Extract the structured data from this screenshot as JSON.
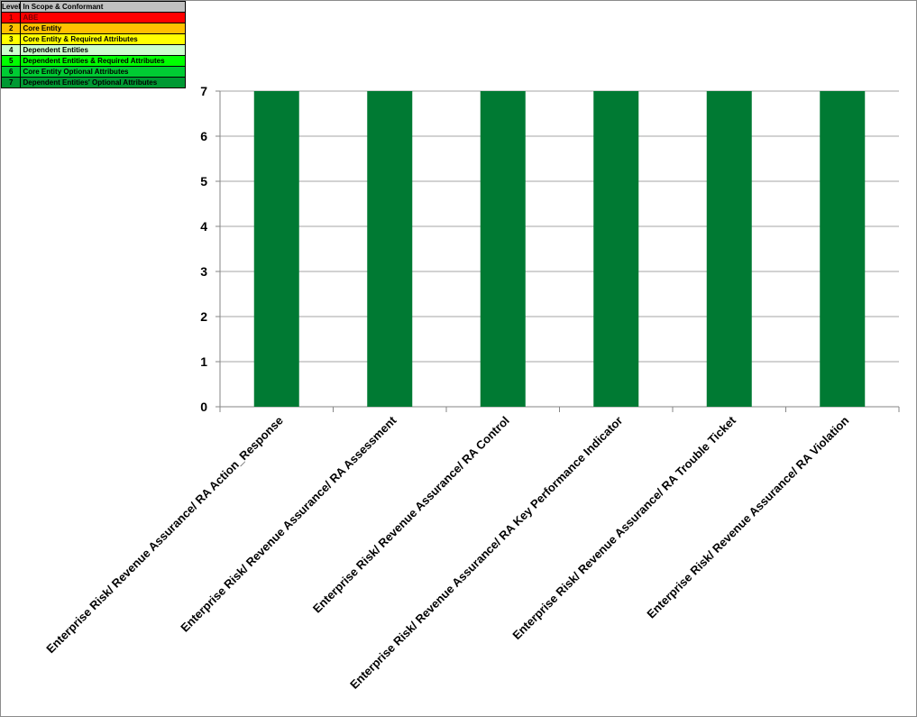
{
  "legend": {
    "header_level": "Level",
    "header_desc": "In Scope & Conformant",
    "rows": [
      {
        "level": "1",
        "label": "ABE",
        "color": "#ff0000"
      },
      {
        "level": "2",
        "label": "Core Entity",
        "color": "#ffc000"
      },
      {
        "level": "3",
        "label": "Core Entity & Required Attributes",
        "color": "#ffff00"
      },
      {
        "level": "4",
        "label": "Dependent Entities",
        "color": "#ccffcc"
      },
      {
        "level": "5",
        "label": "Dependent Entities & Required Attributes",
        "color": "#00ff00"
      },
      {
        "level": "6",
        "label": "Core Entity Optional Attributes",
        "color": "#00cc33"
      },
      {
        "level": "7",
        "label": "Dependent Entities' Optional Attributes",
        "color": "#009933"
      }
    ]
  },
  "chart_data": {
    "type": "bar",
    "categories": [
      "Enterprise Risk/ Revenue Assurance/ RA Action_Response",
      "Enterprise Risk/ Revenue Assurance/ RA Assessment",
      "Enterprise Risk/ Revenue Assurance/ RA Control",
      "Enterprise Risk/ Revenue Assurance/ RA Key Performance Indicator",
      "Enterprise Risk/ Revenue Assurance/ RA Trouble Ticket",
      "Enterprise Risk/ Revenue Assurance/ RA Violation"
    ],
    "values": [
      7,
      7,
      7,
      7,
      7,
      7
    ],
    "ylim": [
      0,
      7
    ],
    "yticks": [
      "0",
      "1",
      "2",
      "3",
      "4",
      "5",
      "6",
      "7"
    ],
    "bar_color": "#007a33",
    "grid": true,
    "title": "",
    "xlabel": "",
    "ylabel": ""
  }
}
